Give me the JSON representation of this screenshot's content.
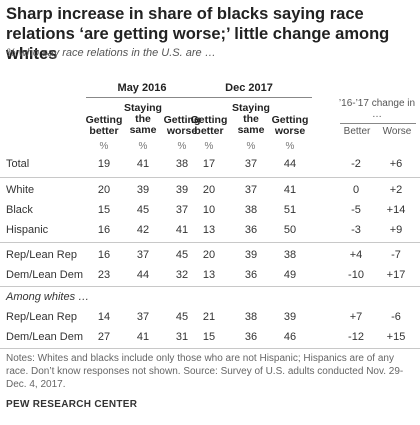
{
  "title": "Sharp increase in share of blacks saying race relations ‘are getting worse;’ little change among whites",
  "subtitle": "% who say race relations in the U.S. are …",
  "groups": [
    "May 2016",
    "Dec 2017"
  ],
  "change_header": "’16-’17 change in …",
  "change_subheads": [
    "Better",
    "Worse"
  ],
  "column_headers": [
    "Getting better",
    "Staying the same",
    "Getting worse"
  ],
  "unit_symbol": "%",
  "section_label": "Among whites …",
  "notes": "Notes: Whites and blacks include only those who are not Hispanic; Hispanics are of any race. Don’t know responses not shown.",
  "source": "Source: Survey of U.S. adults conducted Nov. 29-Dec. 4, 2017.",
  "org": "PEW RESEARCH CENTER",
  "chart_data": {
    "type": "table",
    "title": "Sharp increase in share of blacks saying race relations ‘are getting worse;’ little change among whites",
    "columns": [
      "May 2016 Getting better",
      "May 2016 Staying the same",
      "May 2016 Getting worse",
      "Dec 2017 Getting better",
      "Dec 2017 Staying the same",
      "Dec 2017 Getting worse",
      "Change Better",
      "Change Worse"
    ],
    "rows": [
      {
        "label": "Total",
        "values": [
          "19",
          "41",
          "38",
          "17",
          "37",
          "44",
          "-2",
          "+6"
        ]
      },
      {
        "label": "White",
        "values": [
          "20",
          "39",
          "39",
          "20",
          "37",
          "41",
          "0",
          "+2"
        ]
      },
      {
        "label": "Black",
        "values": [
          "15",
          "45",
          "37",
          "10",
          "38",
          "51",
          "-5",
          "+14"
        ]
      },
      {
        "label": "Hispanic",
        "values": [
          "16",
          "42",
          "41",
          "13",
          "36",
          "50",
          "-3",
          "+9"
        ]
      },
      {
        "label": "Rep/Lean Rep",
        "values": [
          "16",
          "37",
          "45",
          "20",
          "39",
          "38",
          "+4",
          "-7"
        ]
      },
      {
        "label": "Dem/Lean Dem",
        "values": [
          "23",
          "44",
          "32",
          "13",
          "36",
          "49",
          "-10",
          "+17"
        ]
      },
      {
        "label": "Rep/Lean Rep",
        "values": [
          "14",
          "37",
          "45",
          "21",
          "38",
          "39",
          "+7",
          "-6"
        ]
      },
      {
        "label": "Dem/Lean Dem",
        "values": [
          "27",
          "41",
          "31",
          "15",
          "36",
          "46",
          "-12",
          "+15"
        ]
      }
    ]
  }
}
